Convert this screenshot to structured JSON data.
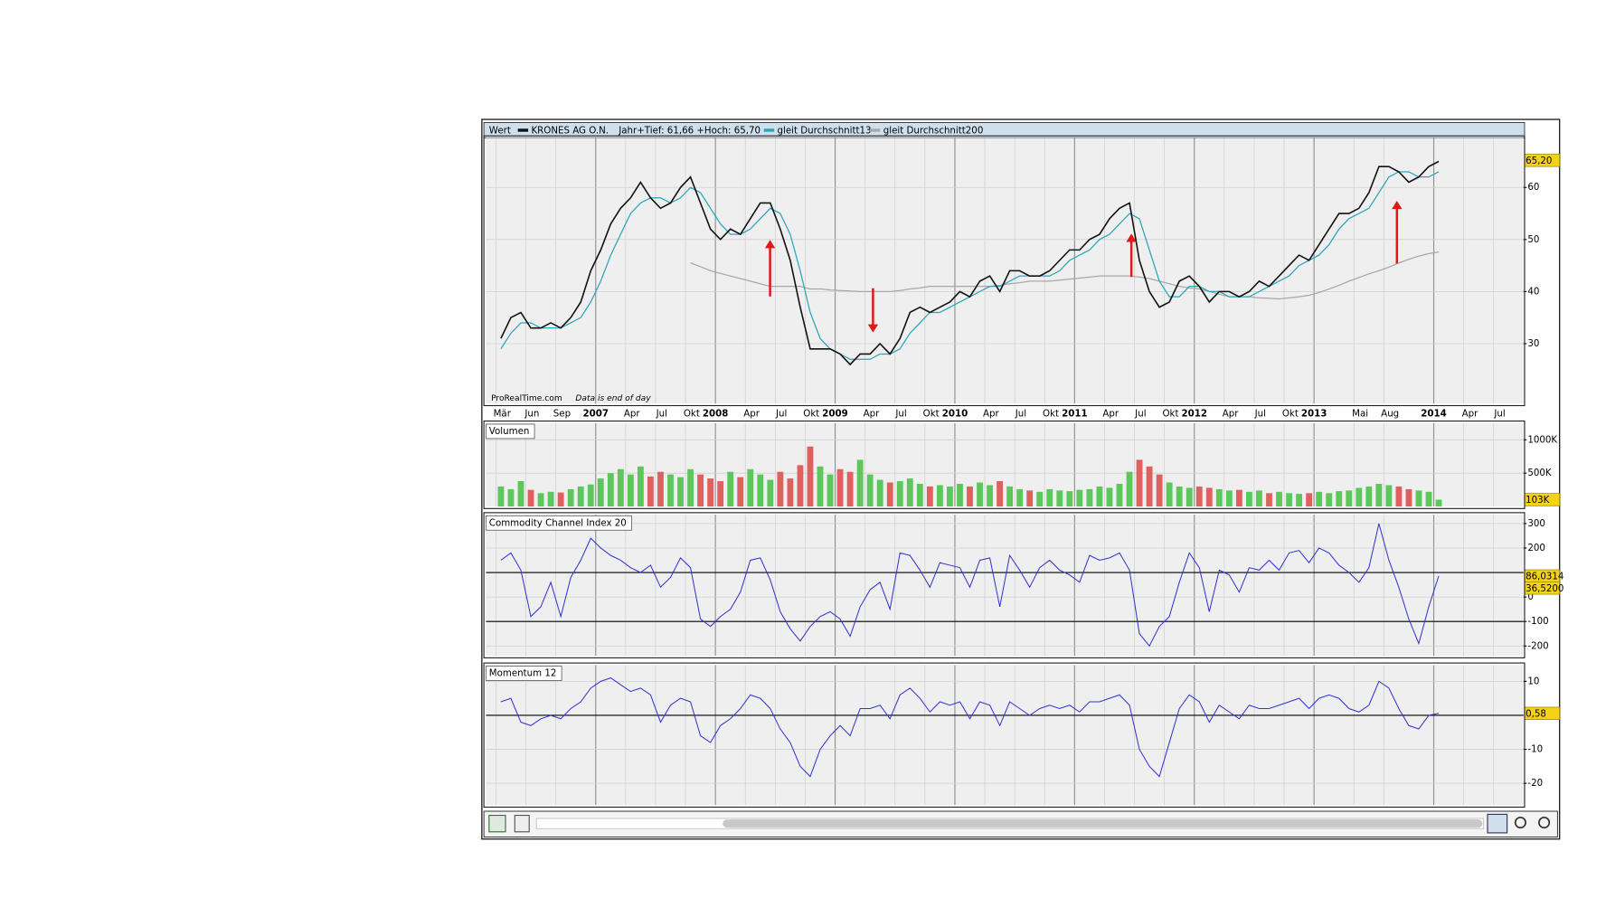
{
  "chart_data": [
    {
      "type": "line",
      "label": "Wert",
      "subtitle": "Jahr+Tief: 61,66 +Hoch: 65,70",
      "source": "ProRealTime.com",
      "note": "Data is end of day",
      "x": [
        "2006-03",
        "2006-04",
        "2006-05",
        "2006-06",
        "2006-07",
        "2006-08",
        "2006-09",
        "2006-10",
        "2006-11",
        "2006-12",
        "2007-01",
        "2007-02",
        "2007-03",
        "2007-04",
        "2007-05",
        "2007-06",
        "2007-07",
        "2007-08",
        "2007-09",
        "2007-10",
        "2007-11",
        "2007-12",
        "2008-01",
        "2008-02",
        "2008-03",
        "2008-04",
        "2008-05",
        "2008-06",
        "2008-07",
        "2008-08",
        "2008-09",
        "2008-10",
        "2008-11",
        "2008-12",
        "2009-01",
        "2009-02",
        "2009-03",
        "2009-04",
        "2009-05",
        "2009-06",
        "2009-07",
        "2009-08",
        "2009-09",
        "2009-10",
        "2009-11",
        "2009-12",
        "2010-01",
        "2010-02",
        "2010-03",
        "2010-04",
        "2010-05",
        "2010-06",
        "2010-07",
        "2010-08",
        "2010-09",
        "2010-10",
        "2010-11",
        "2010-12",
        "2011-01",
        "2011-02",
        "2011-03",
        "2011-04",
        "2011-05",
        "2011-06",
        "2011-07",
        "2011-08",
        "2011-09",
        "2011-10",
        "2011-11",
        "2011-12",
        "2012-01",
        "2012-02",
        "2012-03",
        "2012-04",
        "2012-05",
        "2012-06",
        "2012-07",
        "2012-08",
        "2012-09",
        "2012-10",
        "2012-11",
        "2012-12",
        "2013-01",
        "2013-02",
        "2013-03",
        "2013-04",
        "2013-05",
        "2013-06",
        "2013-07",
        "2013-08",
        "2013-09",
        "2013-10",
        "2013-11",
        "2013-12",
        "2014-01"
      ],
      "series": [
        {
          "name": "KRONES AG O.N.",
          "color": "#111111",
          "values": [
            31,
            35,
            36,
            33,
            33,
            34,
            33,
            35,
            38,
            44,
            48,
            53,
            56,
            58,
            61,
            58,
            56,
            57,
            60,
            62,
            57,
            52,
            50,
            52,
            51,
            54,
            57,
            57,
            52,
            46,
            37,
            29,
            29,
            29,
            28,
            26,
            28,
            28,
            30,
            28,
            31,
            36,
            37,
            36,
            37,
            38,
            40,
            39,
            42,
            43,
            40,
            44,
            44,
            43,
            43,
            44,
            46,
            48,
            48,
            50,
            51,
            54,
            56,
            57,
            46,
            40,
            37,
            38,
            42,
            43,
            41,
            38,
            40,
            40,
            39,
            40,
            42,
            41,
            43,
            45,
            47,
            46,
            49,
            52,
            55,
            55,
            56,
            59,
            64,
            64,
            63,
            61,
            62,
            64,
            65
          ]
        },
        {
          "name": "gleit Durchschnitt13",
          "color": "#2aa6b8",
          "values": [
            29,
            32,
            34,
            34,
            33,
            33,
            33,
            34,
            35,
            38,
            42,
            47,
            51,
            55,
            57,
            58,
            58,
            57,
            58,
            60,
            59,
            56,
            53,
            51,
            51,
            52,
            54,
            56,
            55,
            51,
            44,
            36,
            31,
            29,
            28,
            27,
            27,
            27,
            28,
            28,
            29,
            32,
            34,
            36,
            36,
            37,
            38,
            39,
            40,
            41,
            41,
            42,
            43,
            43,
            43,
            43,
            44,
            46,
            47,
            48,
            50,
            51,
            53,
            55,
            54,
            48,
            42,
            39,
            39,
            41,
            41,
            40,
            40,
            39,
            39,
            39,
            40,
            41,
            42,
            43,
            45,
            46,
            47,
            49,
            52,
            54,
            55,
            56,
            59,
            62,
            63,
            63,
            62,
            62,
            63
          ]
        },
        {
          "name": "gleit Durchschnitt200",
          "color": "#a8a8a8",
          "values": [
            null,
            null,
            null,
            null,
            null,
            null,
            null,
            null,
            null,
            null,
            null,
            null,
            null,
            null,
            null,
            null,
            null,
            null,
            null,
            45.5,
            44.8,
            44,
            43.5,
            43,
            42.5,
            42,
            41.5,
            41,
            41,
            41,
            41,
            40.5,
            40.5,
            40.3,
            40.2,
            40.1,
            40,
            40,
            40,
            40,
            40.2,
            40.5,
            40.7,
            41,
            41,
            41,
            41,
            41,
            41,
            41,
            41.2,
            41.5,
            41.7,
            42,
            42,
            42,
            42.2,
            42.4,
            42.6,
            42.8,
            43,
            43,
            43,
            43,
            42.8,
            42.5,
            42,
            41.5,
            41,
            40.7,
            40.5,
            40,
            39.5,
            39,
            39,
            39,
            38.8,
            38.7,
            38.6,
            38.8,
            39,
            39.3,
            39.8,
            40.5,
            41.2,
            42,
            42.7,
            43.4,
            44,
            44.7,
            45.5,
            46.2,
            46.8,
            47.3,
            47.6
          ]
        }
      ],
      "xlim": [
        "2006-02",
        "2014-10"
      ],
      "xticks": [
        {
          "value": "2006-03",
          "label": "Mär"
        },
        {
          "value": "2006-06",
          "label": "Jun"
        },
        {
          "value": "2006-09",
          "label": "Sep"
        },
        {
          "value": "2007-01",
          "label": "2007"
        },
        {
          "value": "2007-04",
          "label": "Apr"
        },
        {
          "value": "2007-07",
          "label": "Jul"
        },
        {
          "value": "2007-10",
          "label": "Okt"
        },
        {
          "value": "2008-01",
          "label": "2008"
        },
        {
          "value": "2008-04",
          "label": "Apr"
        },
        {
          "value": "2008-07",
          "label": "Jul"
        },
        {
          "value": "2008-10",
          "label": "Okt"
        },
        {
          "value": "2009-01",
          "label": "2009"
        },
        {
          "value": "2009-04",
          "label": "Apr"
        },
        {
          "value": "2009-07",
          "label": "Jul"
        },
        {
          "value": "2009-10",
          "label": "Okt"
        },
        {
          "value": "2010-01",
          "label": "2010"
        },
        {
          "value": "2010-04",
          "label": "Apr"
        },
        {
          "value": "2010-07",
          "label": "Jul"
        },
        {
          "value": "2010-10",
          "label": "Okt"
        },
        {
          "value": "2011-01",
          "label": "2011"
        },
        {
          "value": "2011-04",
          "label": "Apr"
        },
        {
          "value": "2011-07",
          "label": "Jul"
        },
        {
          "value": "2011-10",
          "label": "Okt"
        },
        {
          "value": "2012-01",
          "label": "2012"
        },
        {
          "value": "2012-04",
          "label": "Apr"
        },
        {
          "value": "2012-07",
          "label": "Jul"
        },
        {
          "value": "2012-10",
          "label": "Okt"
        },
        {
          "value": "2013-01",
          "label": "2013"
        },
        {
          "value": "2013-05",
          "label": "Mai"
        },
        {
          "value": "2013-08",
          "label": "Aug"
        },
        {
          "value": "2014-01",
          "label": "2014"
        },
        {
          "value": "2014-04",
          "label": "Apr"
        },
        {
          "value": "2014-07",
          "label": "Jul"
        }
      ],
      "ylim": [
        18.5,
        69.5
      ],
      "yticks": [
        30,
        40,
        50,
        60
      ],
      "grid": true,
      "value_tags": [
        {
          "value": 65.2,
          "label": "65,20"
        }
      ]
    },
    {
      "type": "bar",
      "title": "Volumen",
      "up_color": "#5cc85c",
      "down_color": "#e06060",
      "values": [
        300000,
        260000,
        380000,
        250000,
        200000,
        220000,
        210000,
        260000,
        300000,
        330000,
        420000,
        500000,
        560000,
        480000,
        600000,
        450000,
        520000,
        480000,
        440000,
        560000,
        480000,
        420000,
        380000,
        520000,
        440000,
        560000,
        480000,
        400000,
        520000,
        420000,
        620000,
        900000,
        600000,
        480000,
        560000,
        520000,
        700000,
        480000,
        400000,
        360000,
        380000,
        420000,
        340000,
        300000,
        320000,
        300000,
        340000,
        300000,
        360000,
        320000,
        380000,
        300000,
        260000,
        240000,
        220000,
        260000,
        240000,
        230000,
        250000,
        260000,
        300000,
        280000,
        340000,
        520000,
        700000,
        600000,
        480000,
        360000,
        300000,
        280000,
        300000,
        280000,
        260000,
        240000,
        250000,
        220000,
        240000,
        200000,
        220000,
        200000,
        190000,
        200000,
        220000,
        200000,
        230000,
        240000,
        280000,
        300000,
        340000,
        320000,
        300000,
        260000,
        240000,
        220000,
        103000
      ],
      "ylim": [
        0,
        1250000
      ],
      "yticks": [
        {
          "value": 1000000,
          "label": "1000K"
        },
        {
          "value": 500000,
          "label": "500K"
        }
      ],
      "grid": true,
      "value_tags": [
        {
          "value": 103000,
          "label": "103K"
        }
      ]
    },
    {
      "type": "line",
      "title": "Commodity Channel Index 20",
      "color": "#3333cc",
      "values": [
        150,
        180,
        110,
        -80,
        -40,
        60,
        -80,
        80,
        150,
        240,
        200,
        170,
        150,
        120,
        100,
        130,
        40,
        80,
        160,
        120,
        -90,
        -120,
        -80,
        -50,
        20,
        150,
        160,
        70,
        -60,
        -130,
        -180,
        -120,
        -80,
        -60,
        -90,
        -160,
        -40,
        30,
        60,
        -50,
        180,
        170,
        110,
        40,
        140,
        130,
        120,
        40,
        150,
        160,
        -40,
        170,
        110,
        40,
        120,
        150,
        110,
        90,
        60,
        170,
        150,
        160,
        180,
        110,
        -150,
        -200,
        -120,
        -80,
        60,
        180,
        120,
        -60,
        110,
        90,
        20,
        120,
        110,
        150,
        110,
        180,
        190,
        140,
        200,
        180,
        130,
        100,
        60,
        120,
        300,
        150,
        40,
        -90,
        -190,
        -40,
        86.0314
      ],
      "ylim": [
        -240,
        336
      ],
      "yticks": [
        300,
        200,
        0,
        -100,
        -200
      ],
      "reference_lines": [
        100,
        -100
      ],
      "grid": true,
      "value_tags": [
        {
          "value": 86.0314,
          "label": "86,0314"
        },
        {
          "value": 36.52,
          "label": "36,5200"
        }
      ]
    },
    {
      "type": "line",
      "title": "Momentum 12",
      "color": "#3333cc",
      "values": [
        4,
        5,
        -2,
        -3,
        -1,
        0,
        -1,
        2,
        4,
        8,
        10,
        11,
        9,
        7,
        8,
        6,
        -2,
        3,
        5,
        4,
        -6,
        -8,
        -3,
        -1,
        2,
        6,
        5,
        2,
        -4,
        -8,
        -15,
        -18,
        -10,
        -6,
        -3,
        -6,
        2,
        2,
        3,
        -1,
        6,
        8,
        5,
        1,
        4,
        3,
        4,
        -1,
        4,
        3,
        -3,
        4,
        2,
        0,
        2,
        3,
        2,
        3,
        1,
        4,
        4,
        5,
        6,
        3,
        -10,
        -15,
        -18,
        -8,
        2,
        6,
        4,
        -2,
        3,
        1,
        -1,
        3,
        2,
        2,
        3,
        4,
        5,
        2,
        5,
        6,
        5,
        2,
        1,
        3,
        10,
        8,
        2,
        -3,
        -4,
        0,
        0.58
      ],
      "ylim": [
        -26.4,
        14.8
      ],
      "yticks": [
        10,
        -10,
        -20
      ],
      "reference_lines": [
        0
      ],
      "grid": true,
      "value_tags": [
        {
          "value": 0.58,
          "label": "0,58"
        }
      ]
    }
  ]
}
